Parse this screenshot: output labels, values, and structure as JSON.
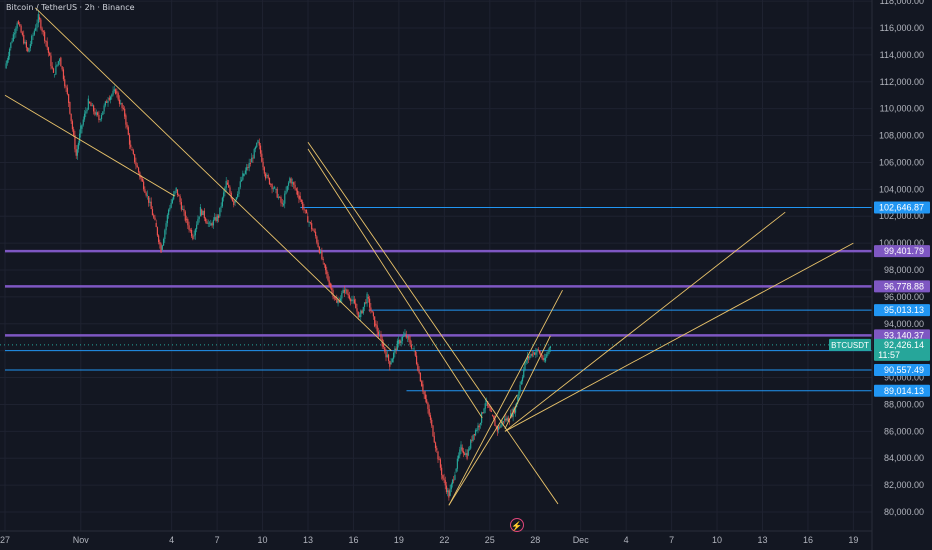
{
  "header": {
    "title": "Bitcoin / TetherUS · 2h · Binance"
  },
  "icons": {
    "event_marker": "lightning-icon"
  },
  "colors": {
    "background": "#131722",
    "grid": "#1e2230",
    "axis_text": "#b2b5be",
    "bull": "#26a69a",
    "bear": "#ef5350",
    "trendline": "#e8c26a",
    "level_blue": "#2196f3",
    "level_purple": "#7e57c2",
    "price_tag": "#26a69a"
  },
  "chart_data": {
    "type": "candlestick",
    "title": "Bitcoin / TetherUS · 2h · Binance",
    "ylim": [
      79000,
      118500
    ],
    "y_ticks": [
      80000,
      82000,
      84000,
      86000,
      88000,
      90000,
      92000,
      94000,
      96000,
      98000,
      100000,
      102000,
      104000,
      106000,
      108000,
      110000,
      112000,
      114000,
      116000,
      118000
    ],
    "y_tick_labels": [
      "80,000.00",
      "82,000.00",
      "84,000.00",
      "86,000.00",
      "88,000.00",
      "90,000.00",
      "92,000.00",
      "94,000.00",
      "96,000.00",
      "98,000.00",
      "100,000.00",
      "102,000.00",
      "104,000.00",
      "106,000.00",
      "108,000.00",
      "110,000.00",
      "112,000.00",
      "114,000.00",
      "116,000.00",
      "118,000.00"
    ],
    "x_start": "Oct 27",
    "x_end": "Dec 22",
    "x_ticks": [
      {
        "day": 0,
        "label": "27"
      },
      {
        "day": 5,
        "label": "Nov"
      },
      {
        "day": 11,
        "label": "4"
      },
      {
        "day": 14,
        "label": "7"
      },
      {
        "day": 17,
        "label": "10"
      },
      {
        "day": 20,
        "label": "13"
      },
      {
        "day": 23,
        "label": "16"
      },
      {
        "day": 26,
        "label": "19"
      },
      {
        "day": 29,
        "label": "22"
      },
      {
        "day": 32,
        "label": "25"
      },
      {
        "day": 35,
        "label": "28"
      },
      {
        "day": 38,
        "label": "Dec"
      },
      {
        "day": 41,
        "label": "4"
      },
      {
        "day": 44,
        "label": "7"
      },
      {
        "day": 47,
        "label": "10"
      },
      {
        "day": 50,
        "label": "13"
      },
      {
        "day": 53,
        "label": "16"
      },
      {
        "day": 56,
        "label": "19"
      }
    ],
    "price_path": [
      [
        0,
        113000
      ],
      [
        0.3,
        114500
      ],
      [
        0.8,
        116500
      ],
      [
        1.5,
        114200
      ],
      [
        2.2,
        116800
      ],
      [
        2.7,
        115000
      ],
      [
        3.2,
        112500
      ],
      [
        3.6,
        113800
      ],
      [
        4.2,
        110500
      ],
      [
        4.7,
        106500
      ],
      [
        5.0,
        108500
      ],
      [
        5.5,
        110500
      ],
      [
        6.2,
        109200
      ],
      [
        6.8,
        110800
      ],
      [
        7.3,
        111300
      ],
      [
        7.9,
        109500
      ],
      [
        8.3,
        107000
      ],
      [
        8.9,
        105000
      ],
      [
        9.4,
        103500
      ],
      [
        9.9,
        101500
      ],
      [
        10.3,
        99500
      ],
      [
        10.8,
        102500
      ],
      [
        11.3,
        104000
      ],
      [
        11.9,
        101800
      ],
      [
        12.4,
        100500
      ],
      [
        12.9,
        102500
      ],
      [
        13.5,
        101300
      ],
      [
        14.1,
        102000
      ],
      [
        14.6,
        104500
      ],
      [
        15.1,
        103000
      ],
      [
        15.7,
        105000
      ],
      [
        16.2,
        106000
      ],
      [
        16.7,
        107500
      ],
      [
        17.2,
        105000
      ],
      [
        17.8,
        104000
      ],
      [
        18.3,
        102800
      ],
      [
        18.8,
        104800
      ],
      [
        19.4,
        103500
      ],
      [
        19.9,
        102000
      ],
      [
        20.5,
        100500
      ],
      [
        21.0,
        98500
      ],
      [
        21.4,
        97000
      ],
      [
        21.9,
        95500
      ],
      [
        22.4,
        96500
      ],
      [
        22.9,
        95800
      ],
      [
        23.4,
        94500
      ],
      [
        23.9,
        96000
      ],
      [
        24.4,
        94000
      ],
      [
        24.9,
        92500
      ],
      [
        25.4,
        91000
      ],
      [
        25.9,
        92500
      ],
      [
        26.4,
        93200
      ],
      [
        27.0,
        92000
      ],
      [
        27.5,
        89500
      ],
      [
        28.0,
        87200
      ],
      [
        28.5,
        84500
      ],
      [
        28.9,
        82500
      ],
      [
        29.3,
        81200
      ],
      [
        29.7,
        83000
      ],
      [
        30.1,
        84800
      ],
      [
        30.5,
        84200
      ],
      [
        30.9,
        85800
      ],
      [
        31.3,
        86500
      ],
      [
        31.7,
        88200
      ],
      [
        32.1,
        87200
      ],
      [
        32.5,
        86100
      ],
      [
        32.9,
        86800
      ],
      [
        33.3,
        87000
      ],
      [
        33.7,
        87800
      ],
      [
        34.0,
        89500
      ],
      [
        34.4,
        91300
      ],
      [
        34.8,
        91800
      ],
      [
        35.2,
        92000
      ],
      [
        35.6,
        91200
      ],
      [
        36.0,
        92426
      ]
    ],
    "horizontal_levels": [
      {
        "price": 102646.87,
        "label": "102,646.87",
        "color": "#2196f3",
        "style": "thin",
        "from_day": 19.5
      },
      {
        "price": 99401.79,
        "label": "99,401.79",
        "color": "#7e57c2",
        "style": "thick",
        "from_day": 0
      },
      {
        "price": 96778.88,
        "label": "96,778.88",
        "color": "#7e57c2",
        "style": "thick",
        "from_day": 0
      },
      {
        "price": 95013.13,
        "label": "95,013.13",
        "color": "#2196f3",
        "style": "thin",
        "from_day": 24
      },
      {
        "price": 93140.37,
        "label": "93,140.37",
        "color": "#7e57c2",
        "style": "thick",
        "from_day": 0
      },
      {
        "price": 92002.94,
        "label": "92,002.94",
        "color": "#2196f3",
        "style": "thin",
        "from_day": 0
      },
      {
        "price": 90557.49,
        "label": "90,557.49",
        "color": "#2196f3",
        "style": "thin",
        "from_day": 0
      },
      {
        "price": 89014.13,
        "label": "89,014.13",
        "color": "#2196f3",
        "style": "thin",
        "from_day": 26.5
      }
    ],
    "current_price": {
      "symbol": "BTCUSDT",
      "value": "92,426.14",
      "countdown": "11:57",
      "price": 92426.14
    },
    "trendlines": [
      {
        "from": [
          0,
          111000
        ],
        "to": [
          11.2,
          103500
        ]
      },
      {
        "from": [
          2.0,
          117500
        ],
        "to": [
          25.5,
          92000
        ]
      },
      {
        "from": [
          20.0,
          107500
        ],
        "to": [
          36.5,
          80600
        ]
      },
      {
        "from": [
          20.0,
          107000
        ],
        "to": [
          31.5,
          87000
        ]
      },
      {
        "from": [
          33.0,
          86000
        ],
        "to": [
          56.0,
          100000
        ]
      },
      {
        "from": [
          33.0,
          86000
        ],
        "to": [
          51.5,
          102300
        ]
      },
      {
        "from": [
          29.3,
          80500
        ],
        "to": [
          36.8,
          96500
        ]
      },
      {
        "from": [
          29.3,
          80500
        ],
        "to": [
          33.8,
          88700
        ]
      },
      {
        "from": [
          33.0,
          86200
        ],
        "to": [
          36.0,
          93100
        ]
      }
    ]
  }
}
